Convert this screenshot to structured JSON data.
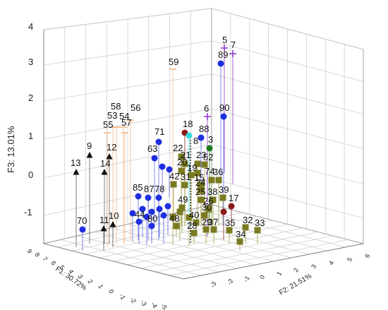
{
  "chart_data": {
    "type": "scatter",
    "dimensions": "3d",
    "axes": {
      "z": {
        "label": "F3: 13.01%",
        "ticks": [
          "4",
          "3",
          "2",
          "1",
          "0",
          "-1"
        ]
      },
      "y": {
        "label": "F2: 21.51%",
        "ticks": [
          "-3",
          "-2",
          "-1",
          "0",
          "1",
          "2",
          "3",
          "4",
          "5",
          "6"
        ]
      },
      "x": {
        "label": "F1: 30.72%",
        "ticks": [
          "9",
          "8",
          "7",
          "6",
          "5",
          "4",
          "3",
          "2",
          "1",
          "0",
          "-1",
          "-2",
          "-3",
          "-4",
          "-5"
        ]
      }
    },
    "grid": true,
    "colors": {
      "black_triangle": "#111111",
      "blue_circle": "#1f2fe0",
      "olive_square": "#7a7b20",
      "orange_line": "#f0b27a",
      "purple_plus": "#8b2fc9",
      "darkred_circle": "#8b1a1a",
      "green_circle": "#1a7a1a",
      "cyan_circle": "#33dddd"
    },
    "points": [
      {
        "label": "5",
        "marker": "purple_plus"
      },
      {
        "label": "7",
        "marker": "purple_plus"
      },
      {
        "label": "89",
        "marker": "blue_circle"
      },
      {
        "label": "59",
        "marker": "orange_line"
      },
      {
        "label": "58",
        "marker": "orange_line"
      },
      {
        "label": "53",
        "marker": "orange_line"
      },
      {
        "label": "54",
        "marker": "orange_line"
      },
      {
        "label": "56",
        "marker": "orange_line"
      },
      {
        "label": "55",
        "marker": "orange_line"
      },
      {
        "label": "57",
        "marker": "orange_line"
      },
      {
        "label": "6",
        "marker": "purple_plus"
      },
      {
        "label": "90",
        "marker": "blue_circle"
      },
      {
        "label": "18",
        "marker": "darkred_circle"
      },
      {
        "label": "88",
        "marker": "blue_circle"
      },
      {
        "label": "8",
        "marker": "cyan_circle"
      },
      {
        "label": "71",
        "marker": "blue_circle"
      },
      {
        "label": "9",
        "marker": "black_triangle"
      },
      {
        "label": "12",
        "marker": "black_triangle"
      },
      {
        "label": "13",
        "marker": "black_triangle"
      },
      {
        "label": "14",
        "marker": "black_triangle"
      },
      {
        "label": "22",
        "marker": "olive_square"
      },
      {
        "label": "3",
        "marker": "green_circle"
      },
      {
        "label": "63",
        "marker": "blue_circle"
      },
      {
        "label": "21",
        "marker": "olive_square"
      },
      {
        "label": "23",
        "marker": "olive_square"
      },
      {
        "label": "52",
        "marker": "olive_square"
      },
      {
        "label": "20",
        "marker": "olive_square"
      },
      {
        "label": "19",
        "marker": "olive_square"
      },
      {
        "label": "15",
        "marker": "olive_square"
      },
      {
        "label": "74",
        "marker": "olive_square"
      },
      {
        "label": "36",
        "marker": "olive_square"
      },
      {
        "label": "42",
        "marker": "olive_square"
      },
      {
        "label": "31",
        "marker": "olive_square"
      },
      {
        "label": "24",
        "marker": "olive_square"
      },
      {
        "label": "25",
        "marker": "olive_square"
      },
      {
        "label": "38",
        "marker": "olive_square"
      },
      {
        "label": "39",
        "marker": "olive_square"
      },
      {
        "label": "17",
        "marker": "darkred_circle"
      },
      {
        "label": "85",
        "marker": "blue_circle"
      },
      {
        "label": "87",
        "marker": "blue_circle"
      },
      {
        "label": "78",
        "marker": "blue_circle"
      },
      {
        "label": "49",
        "marker": "olive_square"
      },
      {
        "label": "26",
        "marker": "olive_square"
      },
      {
        "label": "30",
        "marker": "olive_square"
      },
      {
        "label": "40",
        "marker": "olive_square"
      },
      {
        "label": "44",
        "marker": "blue_circle"
      },
      {
        "label": "80",
        "marker": "blue_circle"
      },
      {
        "label": "48",
        "marker": "olive_square"
      },
      {
        "label": "28",
        "marker": "olive_square"
      },
      {
        "label": "29",
        "marker": "olive_square"
      },
      {
        "label": "37",
        "marker": "olive_square"
      },
      {
        "label": "35",
        "marker": "olive_square"
      },
      {
        "label": "32",
        "marker": "olive_square"
      },
      {
        "label": "33",
        "marker": "olive_square"
      },
      {
        "label": "34",
        "marker": "olive_square"
      },
      {
        "label": "70",
        "marker": "blue_circle"
      },
      {
        "label": "11",
        "marker": "black_triangle"
      },
      {
        "label": "10",
        "marker": "black_triangle"
      }
    ]
  }
}
